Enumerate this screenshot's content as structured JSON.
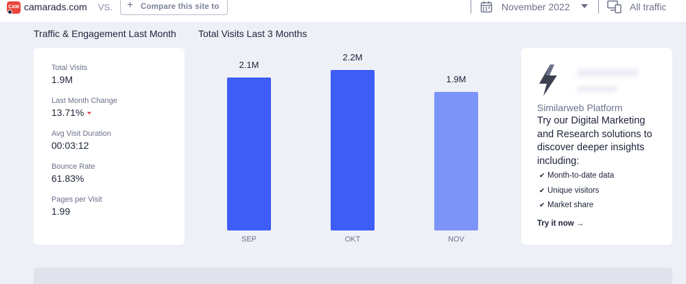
{
  "header": {
    "favicon_text": "CAM",
    "site_domain": "camarads.com",
    "vs_label": "VS.",
    "compare_placeholder": "Compare this site to",
    "month": "November 2022",
    "traffic_filter": "All traffic"
  },
  "sections": {
    "engagement_title": "Traffic & Engagement Last Month",
    "visits_title": "Total Visits Last 3 Months"
  },
  "metrics": [
    {
      "label": "Total Visits",
      "value": "1.9M"
    },
    {
      "label": "Last Month Change",
      "value": "13.71%",
      "trend": "down"
    },
    {
      "label": "Avg Visit Duration",
      "value": "00:03:12"
    },
    {
      "label": "Bounce Rate",
      "value": "61.83%"
    },
    {
      "label": "Pages per Visit",
      "value": "1.99"
    }
  ],
  "chart_data": {
    "type": "bar",
    "title": "Total Visits Last 3 Months",
    "categories": [
      "SEP",
      "OKT",
      "NOV"
    ],
    "values": [
      2.1,
      2.2,
      1.9
    ],
    "value_labels": [
      "2.1M",
      "2.2M",
      "1.9M"
    ],
    "unit": "M",
    "ylim": [
      0,
      2.6
    ],
    "colors": [
      "#3e5cf6",
      "#3e5cf6",
      "#7c94f7"
    ],
    "grid": false
  },
  "promo": {
    "brand": "Similarweb Platform",
    "headline": "Try our Digital Marketing and Research solutions to discover deeper insights including:",
    "features": [
      "Month-to-date data",
      "Unique visitors",
      "Market share"
    ],
    "cta": "Try it now →"
  },
  "colors": {
    "accent": "#3e5cf6",
    "accent_light": "#7c94f7",
    "negative": "#e0465a",
    "background": "#eef0f7"
  }
}
